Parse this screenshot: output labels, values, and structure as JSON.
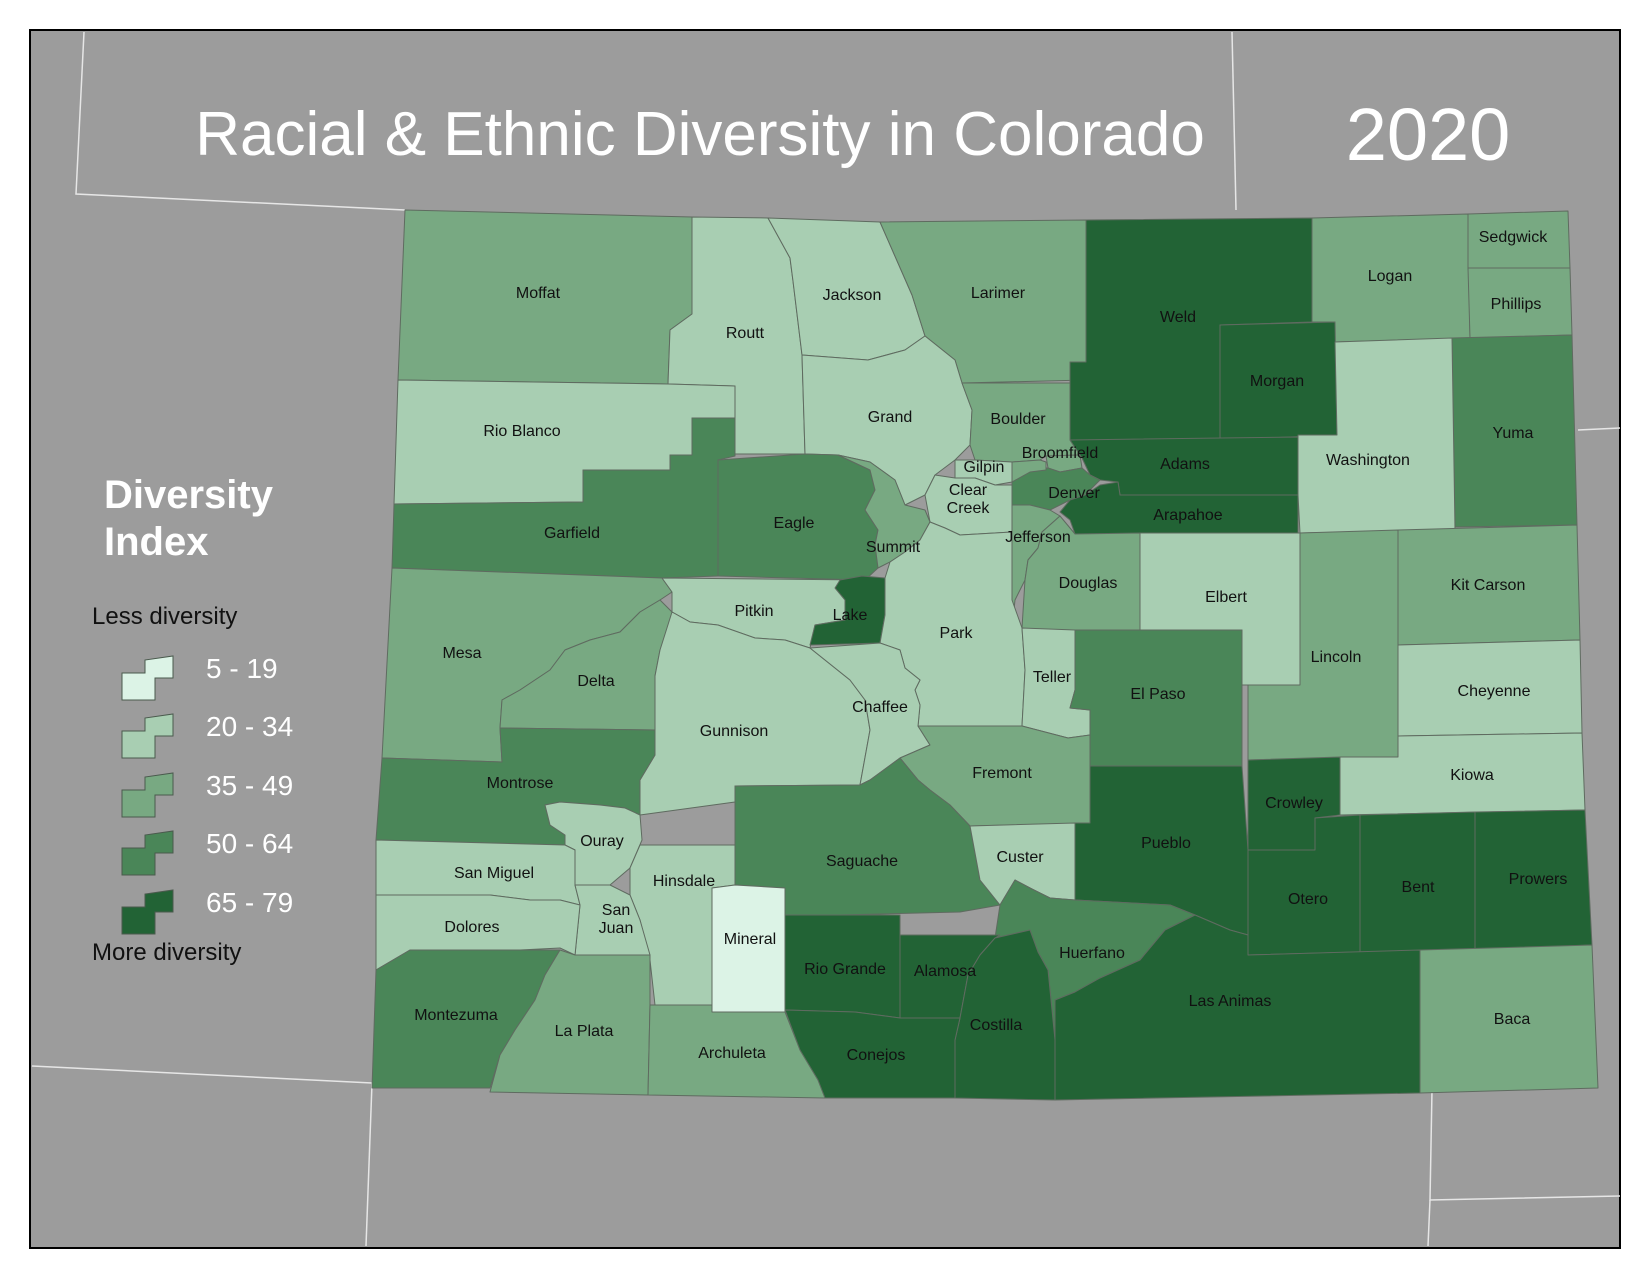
{
  "title": "Racial & Ethnic Diversity in Colorado",
  "year": "2020",
  "legend": {
    "heading_line1": "Diversity",
    "heading_line2": "Index",
    "less_label": "Less diversity",
    "more_label": "More diversity",
    "classes": [
      {
        "range": "5 - 19",
        "color": "#dcf3e6"
      },
      {
        "range": "20 - 34",
        "color": "#a8ceb2"
      },
      {
        "range": "35 - 49",
        "color": "#78a982"
      },
      {
        "range": "50 - 64",
        "color": "#4a8658"
      },
      {
        "range": "65 - 79",
        "color": "#226335"
      }
    ]
  },
  "colors": {
    "background": "#9c9c9c",
    "outline": "#5f6b60",
    "frame": "#000000",
    "title": "#ffffff"
  },
  "counties": [
    {
      "name": "Moffat",
      "class": 3
    },
    {
      "name": "Routt",
      "class": 2
    },
    {
      "name": "Jackson",
      "class": 2
    },
    {
      "name": "Larimer",
      "class": 3
    },
    {
      "name": "Weld",
      "class": 5
    },
    {
      "name": "Logan",
      "class": 3
    },
    {
      "name": "Sedgwick",
      "class": 3
    },
    {
      "name": "Phillips",
      "class": 3
    },
    {
      "name": "Rio Blanco",
      "class": 2
    },
    {
      "name": "Grand",
      "class": 2
    },
    {
      "name": "Boulder",
      "class": 3
    },
    {
      "name": "Morgan",
      "class": 5
    },
    {
      "name": "Yuma",
      "class": 4
    },
    {
      "name": "Broomfield",
      "class": 3
    },
    {
      "name": "Adams",
      "class": 5
    },
    {
      "name": "Washington",
      "class": 2
    },
    {
      "name": "Gilpin",
      "class": 2
    },
    {
      "name": "Denver",
      "class": 4
    },
    {
      "name": "Arapahoe",
      "class": 5
    },
    {
      "name": "Clear Creek",
      "class": 2
    },
    {
      "name": "Jefferson",
      "class": 3
    },
    {
      "name": "Garfield",
      "class": 4
    },
    {
      "name": "Eagle",
      "class": 4
    },
    {
      "name": "Summit",
      "class": 3
    },
    {
      "name": "Douglas",
      "class": 3
    },
    {
      "name": "Elbert",
      "class": 2
    },
    {
      "name": "Kit Carson",
      "class": 3
    },
    {
      "name": "Mesa",
      "class": 3
    },
    {
      "name": "Pitkin",
      "class": 2
    },
    {
      "name": "Lake",
      "class": 5
    },
    {
      "name": "Park",
      "class": 2
    },
    {
      "name": "Delta",
      "class": 3
    },
    {
      "name": "Teller",
      "class": 2
    },
    {
      "name": "Lincoln",
      "class": 3
    },
    {
      "name": "Cheyenne",
      "class": 2
    },
    {
      "name": "El Paso",
      "class": 4
    },
    {
      "name": "Gunnison",
      "class": 2
    },
    {
      "name": "Chaffee",
      "class": 2
    },
    {
      "name": "Montrose",
      "class": 4
    },
    {
      "name": "Fremont",
      "class": 3
    },
    {
      "name": "Kiowa",
      "class": 2
    },
    {
      "name": "Crowley",
      "class": 5
    },
    {
      "name": "Ouray",
      "class": 2
    },
    {
      "name": "San Miguel",
      "class": 2
    },
    {
      "name": "Hinsdale",
      "class": 2
    },
    {
      "name": "Saguache",
      "class": 4
    },
    {
      "name": "Custer",
      "class": 2
    },
    {
      "name": "Pueblo",
      "class": 5
    },
    {
      "name": "Prowers",
      "class": 5
    },
    {
      "name": "Bent",
      "class": 5
    },
    {
      "name": "Otero",
      "class": 5
    },
    {
      "name": "San Juan",
      "class": 2
    },
    {
      "name": "Dolores",
      "class": 2
    },
    {
      "name": "Mineral",
      "class": 1
    },
    {
      "name": "Huerfano",
      "class": 4
    },
    {
      "name": "Rio Grande",
      "class": 5
    },
    {
      "name": "Alamosa",
      "class": 5
    },
    {
      "name": "Las Animas",
      "class": 5
    },
    {
      "name": "Baca",
      "class": 3
    },
    {
      "name": "Montezuma",
      "class": 4
    },
    {
      "name": "La Plata",
      "class": 3
    },
    {
      "name": "Costilla",
      "class": 5
    },
    {
      "name": "Archuleta",
      "class": 3
    },
    {
      "name": "Conejos",
      "class": 5
    }
  ]
}
